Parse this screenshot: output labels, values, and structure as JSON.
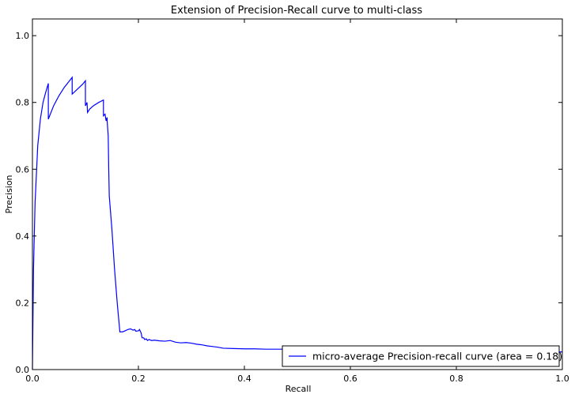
{
  "chart_data": {
    "type": "line",
    "title": "Extension of Precision-Recall curve to multi-class",
    "xlabel": "Recall",
    "ylabel": "Precision",
    "xlim": [
      0.0,
      1.0
    ],
    "ylim": [
      0.0,
      1.05
    ],
    "xticks": [
      "0.0",
      "0.2",
      "0.4",
      "0.6",
      "0.8",
      "1.0"
    ],
    "yticks": [
      "0.0",
      "0.2",
      "0.4",
      "0.6",
      "0.8",
      "1.0"
    ],
    "grid": false,
    "legend_position": "lower-right",
    "series": [
      {
        "name": "micro-average Precision-recall curve (area = 0.18)",
        "color": "#0000ff",
        "x": [
          0.0,
          0.002,
          0.005,
          0.01,
          0.015,
          0.02,
          0.025,
          0.03,
          0.03,
          0.04,
          0.05,
          0.06,
          0.07,
          0.075,
          0.075,
          0.085,
          0.095,
          0.1,
          0.1,
          0.103,
          0.104,
          0.106,
          0.108,
          0.108,
          0.115,
          0.125,
          0.134,
          0.134,
          0.137,
          0.139,
          0.141,
          0.141,
          0.143,
          0.144,
          0.145,
          0.15,
          0.155,
          0.16,
          0.165,
          0.17,
          0.175,
          0.18,
          0.185,
          0.19,
          0.193,
          0.195,
          0.2,
          0.202,
          0.205,
          0.207,
          0.21,
          0.212,
          0.215,
          0.217,
          0.22,
          0.225,
          0.23,
          0.24,
          0.25,
          0.26,
          0.27,
          0.28,
          0.29,
          0.3,
          0.31,
          0.32,
          0.33,
          0.34,
          0.35,
          0.36,
          0.38,
          0.4,
          0.42,
          0.44,
          0.47,
          0.5,
          0.55,
          0.6,
          0.65,
          0.7,
          0.75,
          0.8,
          0.85,
          0.9,
          0.95,
          1.0
        ],
        "y": [
          0.0,
          0.3,
          0.5,
          0.67,
          0.75,
          0.8,
          0.83,
          0.857,
          0.75,
          0.79,
          0.82,
          0.845,
          0.865,
          0.875,
          0.825,
          0.84,
          0.855,
          0.865,
          0.79,
          0.8,
          0.77,
          0.775,
          0.78,
          0.78,
          0.79,
          0.8,
          0.807,
          0.76,
          0.765,
          0.745,
          0.755,
          0.745,
          0.7,
          0.6,
          0.52,
          0.42,
          0.3,
          0.2,
          0.113,
          0.113,
          0.116,
          0.12,
          0.122,
          0.118,
          0.12,
          0.115,
          0.116,
          0.12,
          0.11,
          0.095,
          0.095,
          0.09,
          0.092,
          0.087,
          0.09,
          0.087,
          0.088,
          0.086,
          0.085,
          0.087,
          0.082,
          0.08,
          0.081,
          0.079,
          0.076,
          0.074,
          0.071,
          0.069,
          0.067,
          0.064,
          0.063,
          0.062,
          0.062,
          0.061,
          0.061,
          0.06,
          0.059,
          0.058,
          0.057,
          0.056,
          0.055,
          0.055,
          0.054,
          0.054,
          0.053,
          0.053
        ]
      }
    ]
  }
}
